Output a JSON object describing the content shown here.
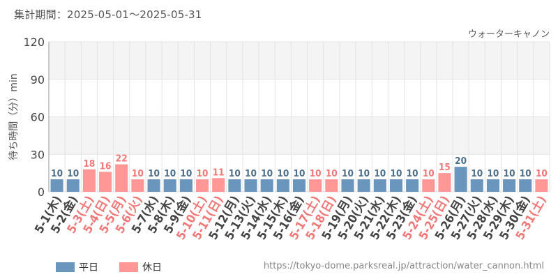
{
  "header": {
    "period": "集計期間：2025-05-01～2025-05-31"
  },
  "legend": {
    "weekday_label": "平日",
    "holiday_label": "休日"
  },
  "footer": {
    "url": "https://tokyo-dome.parksreal.jp/attraction/water_cannon.html"
  },
  "colors": {
    "weekday": "#6a96be",
    "holiday": "#ff9797",
    "weekday_text": "#4e6f8a",
    "holiday_text": "#f07878",
    "axis_text": "#444444",
    "band": "#f4f4f4",
    "grid": "#e3e3e3"
  },
  "chart_data": {
    "type": "bar",
    "title": "ウォーターキャノン",
    "ylabel": "待ち時間（分）min",
    "xlabel": "",
    "ylim": [
      0,
      120
    ],
    "yticks": [
      0,
      30,
      60,
      90,
      120
    ],
    "grid": true,
    "legend_position": "bottom-left",
    "categories": [
      "5-1(木)",
      "5-2(金)",
      "5-3(土)",
      "5-4(日)",
      "5-5(月)",
      "5-6(火)",
      "5-7(水)",
      "5-8(木)",
      "5-9(金)",
      "5-10(土)",
      "5-11(日)",
      "5-12(月)",
      "5-13(火)",
      "5-14(水)",
      "5-15(木)",
      "5-16(金)",
      "5-17(土)",
      "5-18(日)",
      "5-19(月)",
      "5-20(火)",
      "5-21(水)",
      "5-22(木)",
      "5-23(金)",
      "5-24(土)",
      "5-25(日)",
      "5-26(月)",
      "5-27(火)",
      "5-28(水)",
      "5-29(木)",
      "5-30(金)",
      "5-31(土)"
    ],
    "values": [
      10,
      10,
      18,
      16,
      22,
      10,
      10,
      10,
      10,
      10,
      11,
      10,
      10,
      10,
      10,
      10,
      10,
      10,
      10,
      10,
      10,
      10,
      10,
      10,
      15,
      20,
      10,
      10,
      10,
      10,
      10
    ],
    "day_type": [
      "平日",
      "平日",
      "休日",
      "休日",
      "休日",
      "休日",
      "平日",
      "平日",
      "平日",
      "休日",
      "休日",
      "平日",
      "平日",
      "平日",
      "平日",
      "平日",
      "休日",
      "休日",
      "平日",
      "平日",
      "平日",
      "平日",
      "平日",
      "休日",
      "休日",
      "平日",
      "平日",
      "平日",
      "平日",
      "平日",
      "休日"
    ]
  }
}
